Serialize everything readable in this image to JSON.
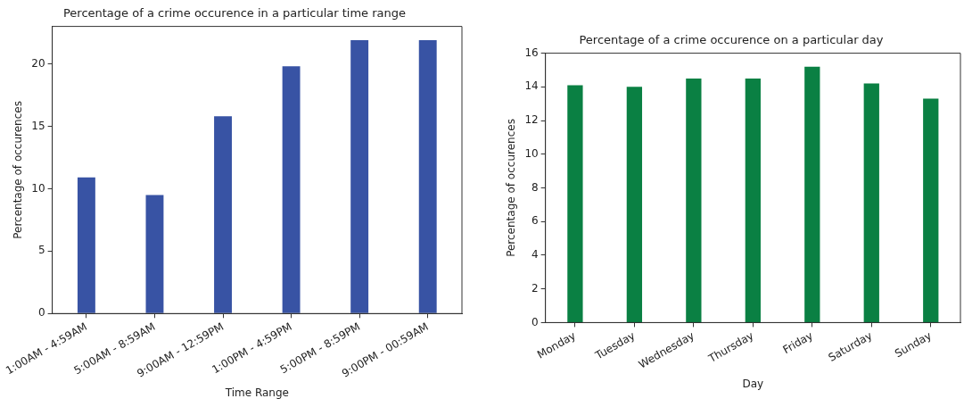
{
  "chart_data": [
    {
      "type": "bar",
      "title": "Percentage of a crime occurence in a particular time range",
      "xlabel": "Time Range",
      "ylabel": "Percentage of occurences",
      "categories": [
        "1:00AM - 4:59AM",
        "5:00AM - 8:59AM",
        "9:00AM - 12:59PM",
        "1:00PM - 4:59PM",
        "5:00PM - 8:59PM",
        "9:00PM - 00:59AM"
      ],
      "values": [
        10.9,
        9.5,
        15.8,
        19.8,
        21.9,
        21.9
      ],
      "color": "#3853a4",
      "ylim": [
        0,
        23
      ],
      "yticks": [
        0,
        5,
        10,
        15,
        20
      ],
      "grid": false,
      "legend": false
    },
    {
      "type": "bar",
      "title": "Percentage of a crime occurence on a particular day",
      "xlabel": "Day",
      "ylabel": "Percentage of occurences",
      "categories": [
        "Monday",
        "Tuesday",
        "Wednesday",
        "Thursday",
        "Friday",
        "Saturday",
        "Sunday"
      ],
      "values": [
        14.1,
        14.0,
        14.5,
        14.5,
        15.2,
        14.2,
        13.3
      ],
      "color": "#0a8043",
      "ylim": [
        0,
        16
      ],
      "yticks": [
        0,
        2,
        4,
        6,
        8,
        10,
        12,
        14,
        16
      ],
      "grid": false,
      "legend": false
    }
  ]
}
